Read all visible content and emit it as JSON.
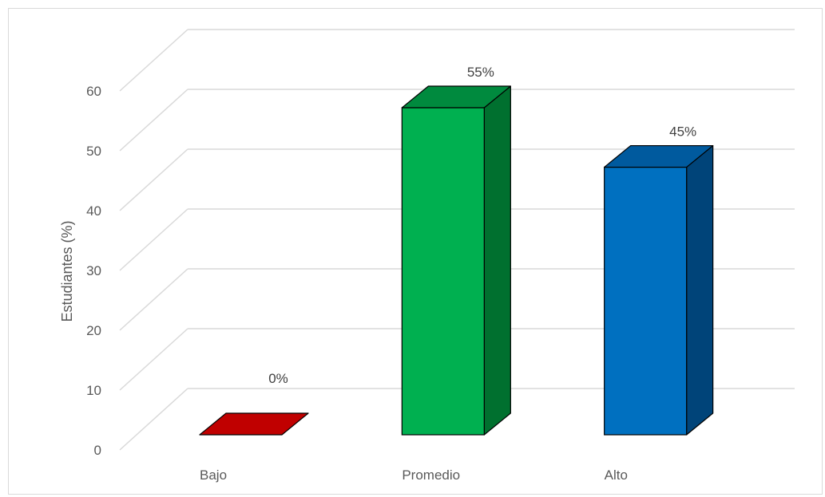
{
  "chart_data": {
    "type": "bar",
    "style": "3d-column",
    "title": "",
    "xlabel": "",
    "ylabel": "Estudiantes (%)",
    "ylim": [
      0,
      60
    ],
    "yticks": [
      0,
      10,
      20,
      30,
      40,
      50,
      60
    ],
    "grid": true,
    "legend": "none",
    "categories": [
      "Bajo",
      "Promedio",
      "Alto"
    ],
    "values": [
      0,
      55,
      45
    ],
    "data_labels": [
      "0%",
      "55%",
      "45%"
    ],
    "colors": {
      "Bajo": {
        "front": "#c00000",
        "side": "#a00000",
        "top": "#c00000"
      },
      "Promedio": {
        "front": "#00b050",
        "side": "#00702f",
        "top": "#008a3e"
      },
      "Alto": {
        "front": "#0070c0",
        "side": "#004479",
        "top": "#005a9e"
      }
    }
  }
}
